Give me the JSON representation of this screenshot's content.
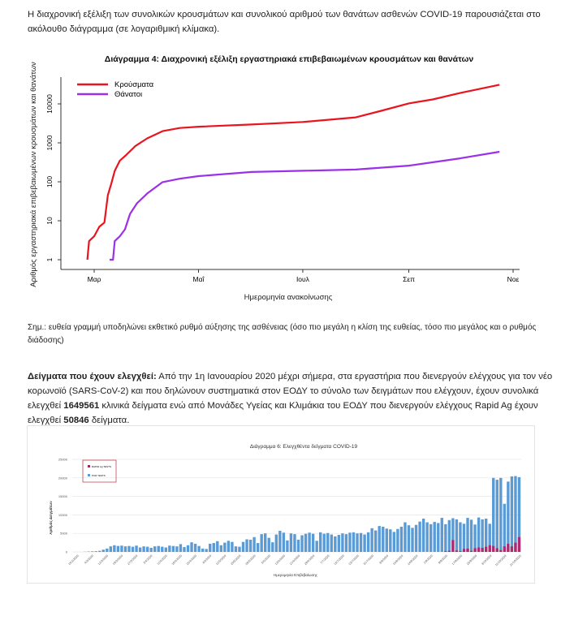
{
  "intro_text": "Η διαχρονική εξέλιξη των συνολικών κρουσμάτων και συνολικού αριθμού των θανάτων ασθενών COVID-19 παρουσιάζεται στο ακόλουθο διάγραμμα (σε λογαριθμική κλίμακα).",
  "note_text": "Σημ.: ευθεία γραμμή υποδηλώνει εκθετικό ρυθμό αύξησης της ασθένειας (όσο πιο μεγάλη η κλίση της ευθείας, τόσο πιο μεγάλος και ο ρυθμός διάδοσης)",
  "samples": {
    "heading": "Δείγματα που έχουν ελεγχθεί:",
    "text_1": " Από την 1η Ιανουαρίου 2020 μέχρι σήμερα, στα εργαστήρια που διενεργούν ελέγχους για τον νέο κορωνοϊό (SARS-CoV-2) και που δηλώνουν συστηματικά στον ΕΟΔΥ το σύνολο των δειγμάτων που ελέγχουν, έχουν συνολικά ελεγχθεί ",
    "pcr_total": "1649561",
    "text_2": " κλινικά δείγματα ενώ από Μονάδες Υγείας και Κλιμάκια του ΕΟΔΥ που διενεργούν ελέγχους Rapid Ag έχουν ελεγχθεί ",
    "rapid_total": "50846",
    "text_3": " δείγματα."
  },
  "chart_data": [
    {
      "type": "line",
      "title": "Διάγραμμα 4: Διαχρονική εξέλιξη εργαστηριακά επιβεβαιωμένων κρουσμάτων και θανάτων",
      "xlabel": "Ημερομηνία ανακοίνωσης",
      "ylabel": "Αριθμός εργαστηριακά επιβεβαιωμένων κρουσμάτων και θανάτων",
      "y_scale": "log",
      "ylim": [
        1,
        40000
      ],
      "y_ticks": [
        "1",
        "10",
        "100",
        "1000",
        "10000"
      ],
      "x_ticks": [
        {
          "label": "Μαρ",
          "date": "2020-03-01"
        },
        {
          "label": "Μαΐ",
          "date": "2020-05-01"
        },
        {
          "label": "Ιουλ",
          "date": "2020-07-01"
        },
        {
          "label": "Σεπ",
          "date": "2020-09-01"
        },
        {
          "label": "Noε",
          "date": "2020-11-01"
        }
      ],
      "xlim": [
        "2020-02-15",
        "2020-11-05"
      ],
      "legend": "top-left",
      "series": [
        {
          "name": "Κρούσματα",
          "color": "#e8141e",
          "points": [
            [
              "2020-02-26",
              1
            ],
            [
              "2020-02-27",
              3
            ],
            [
              "2020-03-01",
              4
            ],
            [
              "2020-03-04",
              7
            ],
            [
              "2020-03-07",
              9
            ],
            [
              "2020-03-09",
              45
            ],
            [
              "2020-03-11",
              90
            ],
            [
              "2020-03-13",
              190
            ],
            [
              "2020-03-16",
              350
            ],
            [
              "2020-03-20",
              500
            ],
            [
              "2020-03-25",
              820
            ],
            [
              "2020-04-01",
              1300
            ],
            [
              "2020-04-10",
              2000
            ],
            [
              "2020-04-20",
              2400
            ],
            [
              "2020-05-01",
              2600
            ],
            [
              "2020-06-01",
              2950
            ],
            [
              "2020-07-01",
              3430
            ],
            [
              "2020-08-01",
              4500
            ],
            [
              "2020-08-15",
              6500
            ],
            [
              "2020-09-01",
              10300
            ],
            [
              "2020-09-15",
              13000
            ],
            [
              "2020-10-01",
              19000
            ],
            [
              "2020-10-24",
              31000
            ]
          ]
        },
        {
          "name": "Θάνατοι",
          "color": "#9b30e8",
          "points": [
            [
              "2020-03-10",
              1
            ],
            [
              "2020-03-12",
              1
            ],
            [
              "2020-03-13",
              3
            ],
            [
              "2020-03-16",
              4
            ],
            [
              "2020-03-19",
              6
            ],
            [
              "2020-03-22",
              15
            ],
            [
              "2020-03-26",
              28
            ],
            [
              "2020-04-01",
              50
            ],
            [
              "2020-04-10",
              98
            ],
            [
              "2020-04-20",
              120
            ],
            [
              "2020-05-01",
              140
            ],
            [
              "2020-06-01",
              179
            ],
            [
              "2020-07-01",
              192
            ],
            [
              "2020-08-01",
              206
            ],
            [
              "2020-09-01",
              260
            ],
            [
              "2020-10-01",
              400
            ],
            [
              "2020-10-24",
              590
            ]
          ]
        }
      ]
    },
    {
      "type": "bar",
      "title": "Διάγραμμα 6: Ελεγχθέντα δείγματα COVID-19",
      "xlabel": "Ημερομηνία Επιβεβαίωσης",
      "ylabel": "Αριθμός Δειγμάτων",
      "ylim": [
        0,
        25000
      ],
      "y_ticks": [
        "0",
        "5000",
        "10000",
        "15000",
        "20000",
        "25000"
      ],
      "grid": true,
      "legend": "top-left",
      "x_tick_labels": [
        "26/2/2020",
        "4/3/2020",
        "12/3/2020",
        "19/3/2020",
        "27/3/2020",
        "3/4/2020",
        "11/4/2020",
        "18/4/2020",
        "26/4/2020",
        "4/5/2020",
        "12/5/2020",
        "20/5/2020",
        "28/5/2020",
        "5/6/2020",
        "13/6/2020",
        "21/6/2020",
        "29/6/2020",
        "7/7/2020",
        "15/7/2020",
        "23/7/2020",
        "31/7/2020",
        "8/8/2020",
        "16/8/2020",
        "24/8/2020",
        "1/9/2020",
        "9/9/2020",
        "17/9/2020",
        "25/9/2020",
        "3/10/2020",
        "11/10/2020",
        "21/10/2020"
      ],
      "series": [
        {
          "name": "RAPID Ag TESTS",
          "color": "#c0185a",
          "values": [
            0,
            0,
            0,
            0,
            0,
            0,
            0,
            0,
            0,
            0,
            0,
            0,
            0,
            0,
            0,
            0,
            0,
            0,
            0,
            0,
            0,
            0,
            0,
            0,
            0,
            0,
            0,
            0,
            0,
            0,
            0,
            0,
            0,
            0,
            0,
            0,
            0,
            0,
            0,
            0,
            0,
            0,
            0,
            0,
            0,
            0,
            0,
            0,
            0,
            0,
            0,
            0,
            0,
            0,
            0,
            0,
            0,
            0,
            0,
            0,
            0,
            0,
            0,
            0,
            0,
            0,
            0,
            0,
            0,
            0,
            0,
            0,
            0,
            0,
            0,
            0,
            0,
            0,
            0,
            0,
            0,
            0,
            0,
            0,
            0,
            0,
            0,
            0,
            0,
            0,
            0,
            0,
            0,
            0,
            0,
            0,
            0,
            0,
            0,
            0,
            0,
            200,
            300,
            3200,
            400,
            200,
            800,
            900,
            300,
            1000,
            1200,
            1100,
            1400,
            1800,
            1600,
            1000,
            500,
            1500,
            2200,
            1500,
            2500,
            4000,
            3000,
            2600,
            3400,
            2500
          ]
        },
        {
          "name": "PCR TESTS",
          "color": "#5b9bd5",
          "values": [
            0,
            0,
            0,
            50,
            100,
            150,
            200,
            300,
            600,
            900,
            1500,
            1800,
            1600,
            1700,
            1500,
            1600,
            1400,
            1700,
            1200,
            1500,
            1400,
            1100,
            1500,
            1600,
            1400,
            1200,
            1700,
            1600,
            1500,
            2100,
            1300,
            1800,
            2600,
            2200,
            1600,
            900,
            800,
            2200,
            2400,
            2900,
            1800,
            2500,
            3000,
            2700,
            1500,
            1400,
            2700,
            3400,
            3300,
            4000,
            2400,
            4800,
            5000,
            3800,
            2600,
            4700,
            5700,
            5200,
            3100,
            5000,
            4800,
            3300,
            4500,
            4900,
            5200,
            4900,
            3000,
            5300,
            4900,
            5100,
            4700,
            4200,
            4600,
            5000,
            4800,
            5200,
            5300,
            5000,
            5100,
            4700,
            5300,
            6400,
            5800,
            7000,
            6800,
            6300,
            6100,
            5400,
            6200,
            6800,
            8000,
            7200,
            6500,
            7300,
            8200,
            9000,
            8000,
            7500,
            8100,
            7800,
            9200,
            7500,
            8600,
            9100,
            8800,
            8000,
            7600,
            9200,
            8700,
            7400,
            9300,
            8800,
            9000,
            7600,
            20000,
            19500,
            20000,
            13000,
            19000,
            20400,
            20500,
            20200
          ]
        }
      ]
    }
  ]
}
